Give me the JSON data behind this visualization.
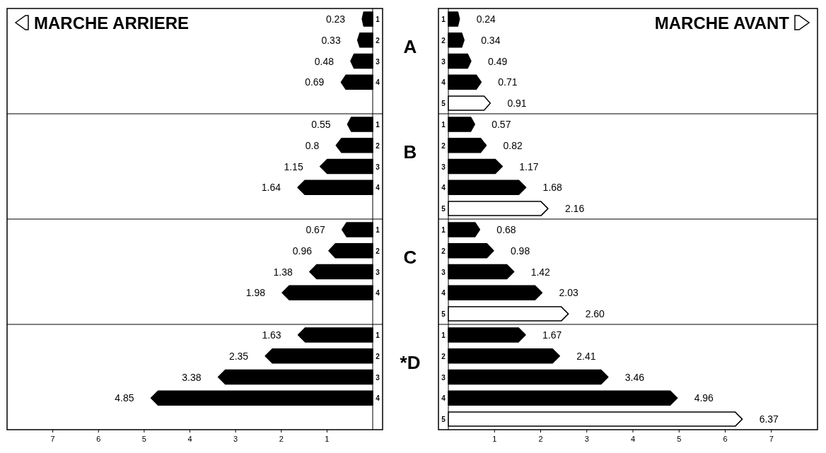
{
  "chart_data": [
    {
      "type": "bar",
      "orientation": "horizontal",
      "title": "MARCHE ARRIERE",
      "categories": [
        "1",
        "2",
        "3",
        "4",
        null,
        "1",
        "2",
        "3",
        "4",
        null,
        "1",
        "2",
        "3",
        "4",
        null,
        "1",
        "2",
        "3",
        "4",
        null
      ],
      "values": [
        0.23,
        0.33,
        0.48,
        0.69,
        null,
        0.55,
        0.8,
        1.15,
        1.64,
        null,
        0.67,
        0.96,
        1.38,
        1.98,
        null,
        1.63,
        2.35,
        3.38,
        4.85,
        null
      ],
      "color": "#000000",
      "xlim": [
        8,
        0
      ],
      "xticks": [
        1,
        2,
        3,
        4,
        5,
        6,
        7
      ],
      "data_labels": true
    },
    {
      "type": "bar",
      "orientation": "horizontal",
      "title": "MARCHE AVANT",
      "categories": [
        "1",
        "2",
        "3",
        "4",
        "5",
        "1",
        "2",
        "3",
        "4",
        "5",
        "1",
        "2",
        "3",
        "4",
        "5",
        "1",
        "2",
        "3",
        "4",
        "5"
      ],
      "values": [
        0.24,
        0.34,
        0.49,
        0.71,
        0.91,
        0.57,
        0.82,
        1.17,
        1.68,
        2.16,
        0.68,
        0.98,
        1.42,
        2.03,
        2.6,
        1.67,
        2.41,
        3.46,
        4.96,
        6.37
      ],
      "value_labels": [
        "0.24",
        "0.34",
        "0.49",
        "0.71",
        "0.91",
        "0.57",
        "0.82",
        "1.17",
        "1.68",
        "2.16",
        "0.68",
        "0.98",
        "1.42",
        "2.03",
        "2.60",
        "1.67",
        "2.41",
        "3.46",
        "4.96",
        "6.37"
      ],
      "colors": [
        "#000000",
        "#000000",
        "#000000",
        "#000000",
        "#ffffff",
        "#000000",
        "#000000",
        "#000000",
        "#000000",
        "#ffffff",
        "#000000",
        "#000000",
        "#000000",
        "#000000",
        "#ffffff",
        "#000000",
        "#000000",
        "#000000",
        "#000000",
        "#ffffff"
      ],
      "annotations": [
        "A",
        "B",
        "C",
        "*D"
      ],
      "xlim": [
        0,
        8
      ],
      "xticks": [
        1,
        2,
        3,
        4,
        5,
        6,
        7
      ]
    }
  ]
}
